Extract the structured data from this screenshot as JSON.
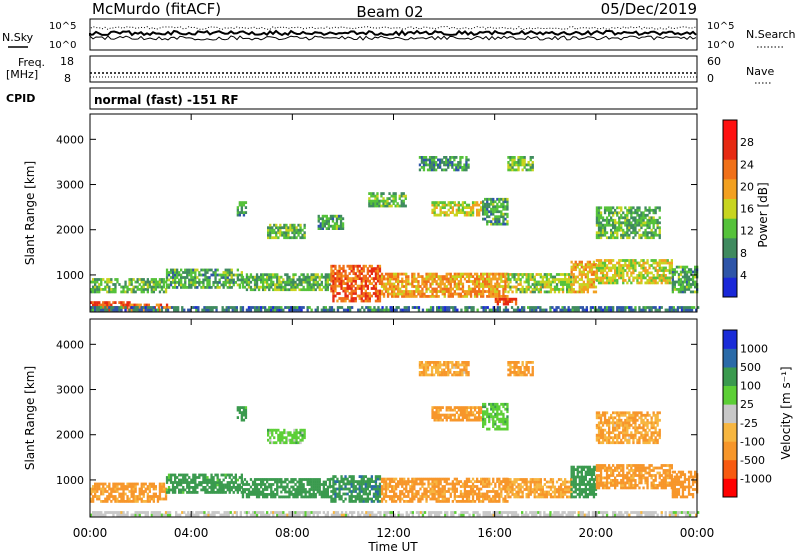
{
  "header": {
    "station_title": "McMurdo (fitACF)",
    "beam_title": "Beam 02",
    "date_title": "05/Dec/2019"
  },
  "status_panels": {
    "nsky_label": "N.Sky",
    "nsearch_label": "N.Search",
    "freq_label_line1": "Freq.",
    "freq_label_line2": "[MHz]",
    "nave_label": "Nave",
    "cpid_label": "CPID",
    "cpid_text": "normal (fast) -151 RF",
    "noise_left_ticks": [
      "10^5",
      "10^0"
    ],
    "noise_right_ticks": [
      "10^5",
      "10^0"
    ],
    "freq_left_ticks": [
      "18",
      "8"
    ],
    "nave_right_ticks": [
      "60",
      "0"
    ]
  },
  "colors": {
    "power_scale": [
      "#1a28d8",
      "#2e55a8",
      "#3f8a5f",
      "#55c23a",
      "#c8d41f",
      "#f2a020",
      "#f07018",
      "#e62a12",
      "#ff1010"
    ],
    "velocity_scale": [
      "#ff0000",
      "#f85a10",
      "#f7962a",
      "#f7b640",
      "#c8c8c8",
      "#5ccf36",
      "#3a9a4e",
      "#2a6aa8",
      "#1a2cd8"
    ]
  },
  "chart_data": [
    {
      "type": "heatmap",
      "panel": "power",
      "x_axis": {
        "ticks": [
          "00:00",
          "04:00",
          "08:00",
          "12:00",
          "16:00",
          "20:00",
          "00:00"
        ],
        "label": "Time UT",
        "range_hours": [
          0,
          24
        ]
      },
      "y_axis": {
        "label": "Slant Range [km]",
        "ticks": [
          1000,
          2000,
          3000,
          4000
        ],
        "ylim": [
          180,
          4560
        ]
      },
      "colorbar": {
        "label": "Power [dB]",
        "ticks": [
          "4",
          "8",
          "12",
          "16",
          "20",
          "24",
          "28"
        ],
        "range": [
          0,
          32
        ]
      },
      "regions": [
        {
          "t": [
            0.0,
            1.6
          ],
          "r": [
            200,
            400
          ],
          "value": 29
        },
        {
          "t": [
            1.4,
            3.2
          ],
          "r": [
            200,
            330
          ],
          "value": 25
        },
        {
          "t": [
            0.0,
            24.0
          ],
          "r": [
            200,
            260
          ],
          "value": 8
        },
        {
          "t": [
            0.0,
            3.0
          ],
          "r": [
            600,
            900
          ],
          "value": 13
        },
        {
          "t": [
            3.0,
            6.0
          ],
          "r": [
            700,
            1100
          ],
          "value": 12
        },
        {
          "t": [
            6.0,
            9.5
          ],
          "r": [
            650,
            1000
          ],
          "value": 13
        },
        {
          "t": [
            9.5,
            11.5
          ],
          "r": [
            400,
            1200
          ],
          "value": 27
        },
        {
          "t": [
            11.5,
            16.5
          ],
          "r": [
            500,
            1000
          ],
          "value": 23
        },
        {
          "t": [
            16.5,
            19.0
          ],
          "r": [
            600,
            1000
          ],
          "value": 16
        },
        {
          "t": [
            19.0,
            20.0
          ],
          "r": [
            600,
            1300
          ],
          "value": 21
        },
        {
          "t": [
            20.0,
            23.0
          ],
          "r": [
            800,
            1300
          ],
          "value": 18
        },
        {
          "t": [
            23.0,
            24.0
          ],
          "r": [
            600,
            1200
          ],
          "value": 12
        },
        {
          "t": [
            16.0,
            16.8
          ],
          "r": [
            330,
            450
          ],
          "value": 30
        },
        {
          "t": [
            7.0,
            8.5
          ],
          "r": [
            1800,
            2100
          ],
          "value": 14
        },
        {
          "t": [
            9.0,
            10.0
          ],
          "r": [
            2000,
            2300
          ],
          "value": 12
        },
        {
          "t": [
            11.0,
            12.5
          ],
          "r": [
            2500,
            2800
          ],
          "value": 13
        },
        {
          "t": [
            13.5,
            15.5
          ],
          "r": [
            2300,
            2600
          ],
          "value": 18
        },
        {
          "t": [
            15.5,
            16.5
          ],
          "r": [
            2100,
            2700
          ],
          "value": 12
        },
        {
          "t": [
            13.0,
            15.0
          ],
          "r": [
            3300,
            3600
          ],
          "value": 11
        },
        {
          "t": [
            16.5,
            17.5
          ],
          "r": [
            3300,
            3600
          ],
          "value": 14
        },
        {
          "t": [
            20.0,
            22.5
          ],
          "r": [
            1800,
            2500
          ],
          "value": 13
        },
        {
          "t": [
            5.8,
            6.2
          ],
          "r": [
            2300,
            2600
          ],
          "value": 12
        }
      ]
    },
    {
      "type": "heatmap",
      "panel": "velocity",
      "x_axis": {
        "ticks": [
          "00:00",
          "04:00",
          "08:00",
          "12:00",
          "16:00",
          "20:00",
          "00:00"
        ],
        "label": "Time UT",
        "range_hours": [
          0,
          24
        ]
      },
      "y_axis": {
        "label": "Slant Range [km]",
        "ticks": [
          1000,
          2000,
          3000,
          4000
        ],
        "ylim": [
          180,
          4560
        ]
      },
      "colorbar": {
        "label": "Velocity [m s⁻¹]",
        "ticks": [
          "-1000",
          "-500",
          "-100",
          "-25",
          "25",
          "100",
          "500",
          "1000"
        ],
        "range": [
          -1250,
          1250
        ]
      },
      "regions": [
        {
          "t": [
            0.0,
            24.0
          ],
          "r": [
            200,
            280
          ],
          "value": 0
        },
        {
          "t": [
            0.0,
            3.0
          ],
          "r": [
            500,
            900
          ],
          "value": -150
        },
        {
          "t": [
            3.0,
            6.0
          ],
          "r": [
            700,
            1100
          ],
          "value": 200
        },
        {
          "t": [
            6.0,
            9.5
          ],
          "r": [
            600,
            1000
          ],
          "value": 300
        },
        {
          "t": [
            9.5,
            11.5
          ],
          "r": [
            500,
            1100
          ],
          "value": 400
        },
        {
          "t": [
            11.5,
            16.5
          ],
          "r": [
            500,
            1000
          ],
          "value": -150
        },
        {
          "t": [
            16.5,
            19.0
          ],
          "r": [
            600,
            1000
          ],
          "value": -100
        },
        {
          "t": [
            19.0,
            20.0
          ],
          "r": [
            600,
            1300
          ],
          "value": 300
        },
        {
          "t": [
            20.0,
            23.0
          ],
          "r": [
            800,
            1300
          ],
          "value": -150
        },
        {
          "t": [
            23.0,
            24.0
          ],
          "r": [
            600,
            1200
          ],
          "value": -300
        },
        {
          "t": [
            7.0,
            8.5
          ],
          "r": [
            1800,
            2100
          ],
          "value": 60
        },
        {
          "t": [
            13.5,
            15.5
          ],
          "r": [
            2300,
            2600
          ],
          "value": -150
        },
        {
          "t": [
            15.5,
            16.5
          ],
          "r": [
            2100,
            2700
          ],
          "value": 80
        },
        {
          "t": [
            13.0,
            15.0
          ],
          "r": [
            3300,
            3600
          ],
          "value": -100
        },
        {
          "t": [
            16.5,
            17.5
          ],
          "r": [
            3300,
            3600
          ],
          "value": -120
        },
        {
          "t": [
            20.0,
            22.5
          ],
          "r": [
            1800,
            2500
          ],
          "value": -100
        },
        {
          "t": [
            5.8,
            6.2
          ],
          "r": [
            2300,
            2600
          ],
          "value": 200
        }
      ]
    }
  ]
}
